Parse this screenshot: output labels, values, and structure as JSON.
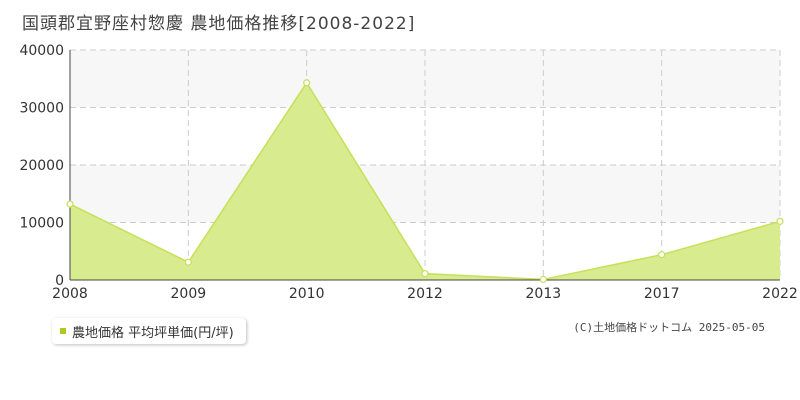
{
  "title": "国頭郡宜野座村惣慶 農地価格推移[2008-2022]",
  "legend": {
    "label": "農地価格 平均坪単価(円/坪)"
  },
  "credit": "(C)土地価格ドットコム 2025-05-05",
  "colors": {
    "fill": "#d9eb8f",
    "line": "#c5e05a",
    "marker_fill": "#ffffff",
    "grid": "#cccccc",
    "band": "#f7f7f7",
    "axis_text": "#333333"
  },
  "chart_data": {
    "type": "area",
    "title": "国頭郡宜野座村惣慶 農地価格推移[2008-2022]",
    "x": [
      "2008",
      "2009",
      "2010",
      "2012",
      "2013",
      "2017",
      "2022"
    ],
    "series": [
      {
        "name": "農地価格 平均坪単価(円/坪)",
        "values": [
          13200,
          3100,
          34300,
          1100,
          100,
          4400,
          10200
        ]
      }
    ],
    "ylim": [
      0,
      40000
    ],
    "yticks": [
      0,
      10000,
      20000,
      30000,
      40000
    ],
    "grid": true,
    "legend_position": "bottom-left"
  }
}
